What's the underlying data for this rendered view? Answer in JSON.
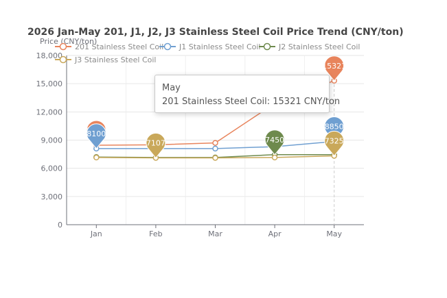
{
  "chart_data": {
    "type": "line",
    "title": "2026 Jan-May 201, J1, J2, J3 Stainless Steel Coil Price Trend (CNY/ton)",
    "ylabel": "Price (CNY/ton)",
    "xlabel": "",
    "categories": [
      "Jan",
      "Feb",
      "Mar",
      "Apr",
      "May"
    ],
    "ylim": [
      0,
      18000
    ],
    "yticks": [
      "0",
      "3,000",
      "6,000",
      "9,000",
      "12,000",
      "15,000",
      "18,000"
    ],
    "ytick_values": [
      0,
      3000,
      6000,
      9000,
      12000,
      15000,
      18000
    ],
    "grid": true,
    "legend_position": "top",
    "series": [
      {
        "name": "201 Stainless Steel Coil",
        "color": "#e8845c",
        "values": [
          8450,
          8500,
          8700,
          12900,
          15321
        ],
        "max_label": "15321",
        "min_label": "8450"
      },
      {
        "name": "J1 Stainless Steel Coil",
        "color": "#6f9fd1",
        "values": [
          8100,
          8100,
          8100,
          8300,
          8850
        ],
        "max_label": "8850",
        "min_label": "8100"
      },
      {
        "name": "J2 Stainless Steel Coil",
        "color": "#6e8a4d",
        "values": [
          7200,
          7150,
          7150,
          7450,
          7450
        ],
        "max_label": "7450",
        "min_label": "7150"
      },
      {
        "name": "J3 Stainless Steel Coil",
        "color": "#c9a85a",
        "values": [
          7150,
          7107,
          7107,
          7150,
          7325
        ],
        "max_label": "7325",
        "min_label": "7107"
      }
    ],
    "tooltip": {
      "category": "May",
      "series": "201 Stainless Steel Coil",
      "value_text": "15321 CNY/ton"
    }
  }
}
